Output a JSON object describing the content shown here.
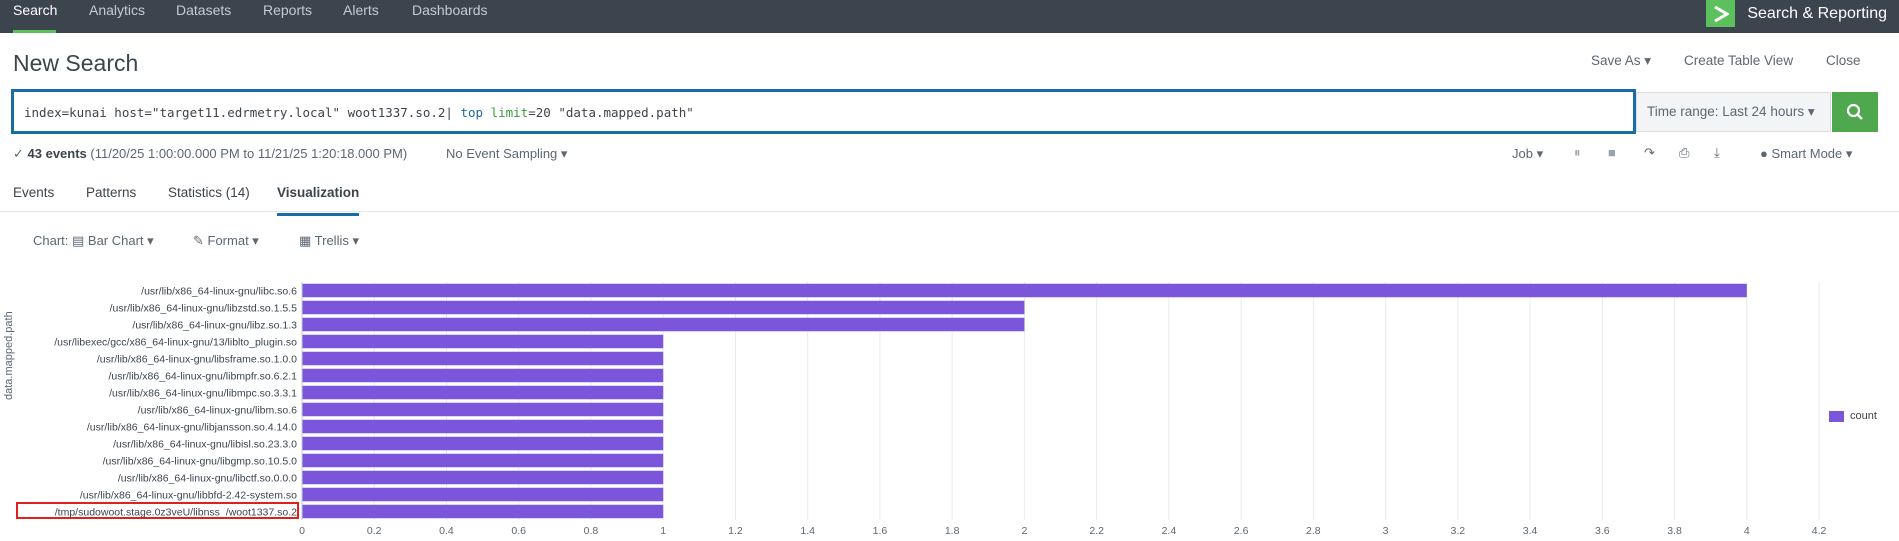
{
  "nav": {
    "tabs": [
      "Search",
      "Analytics",
      "Datasets",
      "Reports",
      "Alerts",
      "Dashboards"
    ],
    "active_tab": "Search",
    "app_title": "Search & Reporting"
  },
  "header": {
    "title": "New Search",
    "actions": [
      "Save As ▾",
      "Create Table View",
      "Close"
    ]
  },
  "search": {
    "query_prefix": "index=kunai host=\"target11.edrmetry.local\" woot1337.so.2| ",
    "query_cmd": "top",
    "query_arg": " limit",
    "query_suffix": "=20 \"data.mapped.path\"",
    "time_range": "Time range: Last 24 hours ▾"
  },
  "status": {
    "events_count": "43 events",
    "events_range": " (11/20/25 1:00:00.000 PM to 11/21/25 1:20:18.000 PM)",
    "sampling": "No Event Sampling ▾",
    "job": "Job ▾",
    "mode": "Smart Mode ▾"
  },
  "result_tabs": [
    "Events",
    "Patterns",
    "Statistics (14)",
    "Visualization"
  ],
  "active_result_tab": "Visualization",
  "viz_toolbar": {
    "chart": "Chart: ▤ Bar Chart ▾",
    "format": "✎ Format ▾",
    "trellis": "▦ Trellis ▾"
  },
  "chart_data": {
    "type": "bar",
    "orientation": "horizontal",
    "ylabel": "data.mapped.path",
    "categories": [
      "/usr/lib/x86_64-linux-gnu/libc.so.6",
      "/usr/lib/x86_64-linux-gnu/libzstd.so.1.5.5",
      "/usr/lib/x86_64-linux-gnu/libz.so.1.3",
      "/usr/libexec/gcc/x86_64-linux-gnu/13/liblto_plugin.so",
      "/usr/lib/x86_64-linux-gnu/libsframe.so.1.0.0",
      "/usr/lib/x86_64-linux-gnu/libmpfr.so.6.2.1",
      "/usr/lib/x86_64-linux-gnu/libmpc.so.3.3.1",
      "/usr/lib/x86_64-linux-gnu/libm.so.6",
      "/usr/lib/x86_64-linux-gnu/libjansson.so.4.14.0",
      "/usr/lib/x86_64-linux-gnu/libisl.so.23.3.0",
      "/usr/lib/x86_64-linux-gnu/libgmp.so.10.5.0",
      "/usr/lib/x86_64-linux-gnu/libctf.so.0.0.0",
      "/usr/lib/x86_64-linux-gnu/libbfd-2.42-system.so",
      "/tmp/sudowoot.stage.0z3veU/libnss_/woot1337.so.2"
    ],
    "series": [
      {
        "name": "count",
        "values": [
          4,
          2,
          2,
          1,
          1,
          1,
          1,
          1,
          1,
          1,
          1,
          1,
          1,
          1
        ]
      }
    ],
    "xlim": [
      0,
      4.2
    ],
    "xticks": [
      "0",
      "0.2",
      "0.4",
      "0.6",
      "0.8",
      "1",
      "1.2",
      "1.4",
      "1.6",
      "1.8",
      "2",
      "2.2",
      "2.4",
      "2.6",
      "2.8",
      "3",
      "3.2",
      "3.4",
      "3.6",
      "3.8",
      "4",
      "4.2"
    ],
    "legend_position": "right",
    "bar_color": "#7b56db",
    "highlight_color": "#e02020"
  }
}
